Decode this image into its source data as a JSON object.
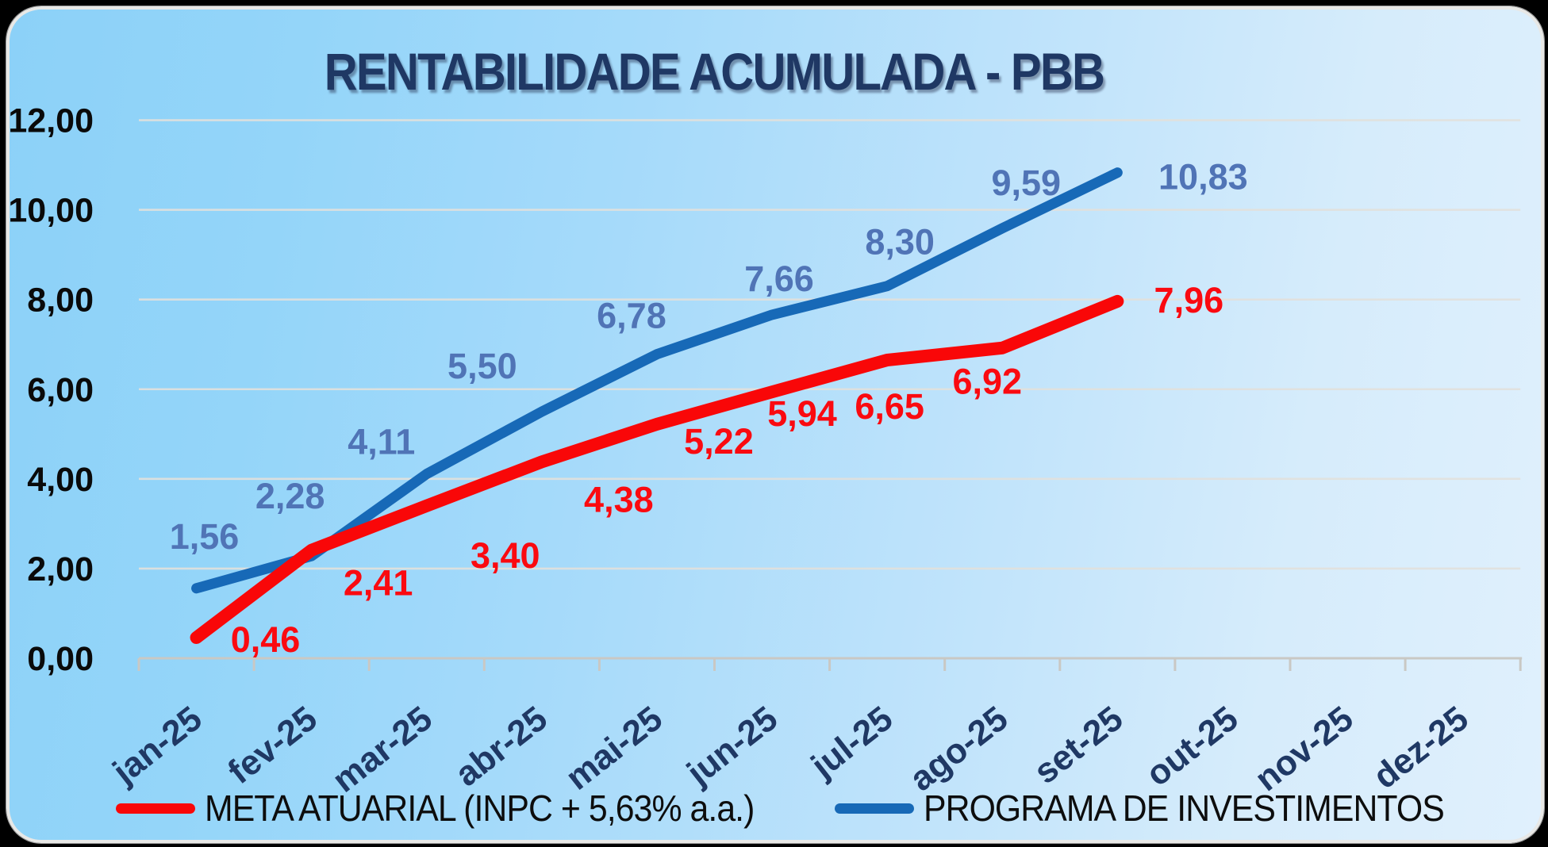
{
  "title": "RENTABILIDADE ACUMULADA - PBB",
  "chart_data": {
    "type": "line",
    "title": "RENTABILIDADE ACUMULADA - PBB",
    "categories": [
      "jan-25",
      "fev-25",
      "mar-25",
      "abr-25",
      "mai-25",
      "jun-25",
      "jul-25",
      "ago-25",
      "set-25",
      "out-25",
      "nov-25",
      "dez-25"
    ],
    "series": [
      {
        "name": "PROGRAMA DE INVESTIMENTOS",
        "color": "#1769b7",
        "label_color": "#5074b6",
        "values": [
          1.56,
          2.28,
          4.11,
          5.5,
          6.78,
          7.66,
          8.3,
          9.59,
          10.83
        ],
        "value_labels": [
          "1,56",
          "2,28",
          "4,11",
          "5,50",
          "6,78",
          "7,66",
          "8,30",
          "9,59",
          "10,83"
        ]
      },
      {
        "name": "META ATUARIAL (INPC + 5,63% a.a.)",
        "color": "#f90708",
        "label_color": "#fa0a10",
        "values": [
          0.46,
          2.41,
          3.4,
          4.38,
          5.22,
          5.94,
          6.65,
          6.92,
          7.96
        ],
        "value_labels": [
          "0,46",
          "2,41",
          "3,40",
          "4,38",
          "5,22",
          "5,94",
          "6,65",
          "6,92",
          "7,96"
        ]
      }
    ],
    "y_axis": {
      "tick_labels": [
        "12,00",
        "10,00",
        "8,00",
        "6,00",
        "4,00",
        "2,00",
        "0,00"
      ],
      "tick_values": [
        12,
        10,
        8,
        6,
        4,
        2,
        0
      ],
      "range": [
        0,
        12
      ]
    },
    "grid": true,
    "legend_position": "bottom",
    "x_tick_rotation_deg": -38,
    "decimal_separator": ","
  },
  "colors": {
    "page_background": "#000000",
    "card_background_left": "#8cd1f8",
    "card_background_right": "#e0f0fd",
    "card_border": "#e8e8e6",
    "title_text": "#1f3864",
    "x_label_text": "#1f3864",
    "y_label_text": "#0a0a0a",
    "gridline": "#e2e1dd",
    "axis": "#c9c8c4",
    "legend_text": "#0d0d0d"
  }
}
